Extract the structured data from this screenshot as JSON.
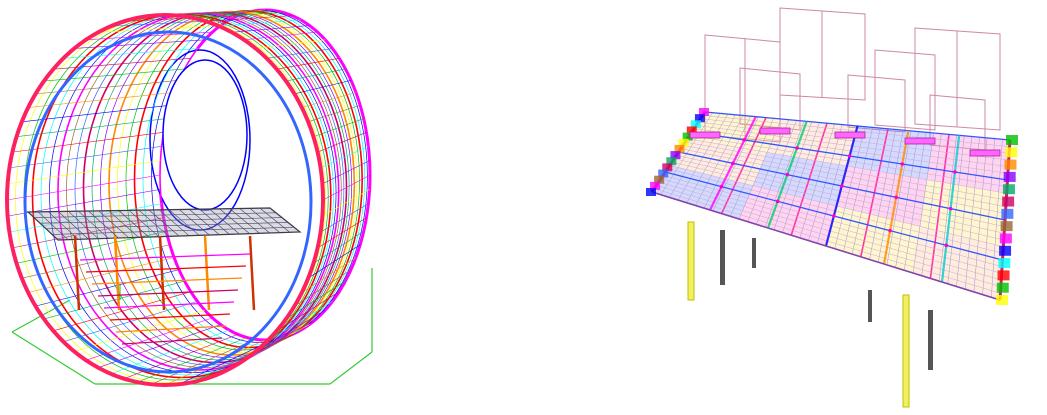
{
  "figures": [
    {
      "id": "fuselage-barrel",
      "kind": "fem-wireframe-fuselage-section"
    },
    {
      "id": "cabin-floor-grid",
      "kind": "fem-wireframe-floor-structure"
    }
  ],
  "colors": {
    "background": "#ffffff",
    "palette": [
      "#ff00ff",
      "#0000ff",
      "#00ffff",
      "#ff0000",
      "#00c000",
      "#ffff00",
      "#ff8800",
      "#8800ff",
      "#00aa66",
      "#cc0066",
      "#3366ff",
      "#996633"
    ],
    "ground_lines": "#33cc33",
    "floor_pink": "#ff66cc",
    "floor_blue": "#6677ff",
    "floor_yellow": "#ffdd55",
    "floor_peach": "#ffbb88",
    "support_posts": "#e0e000",
    "frame_outline": "#cc88aa"
  }
}
